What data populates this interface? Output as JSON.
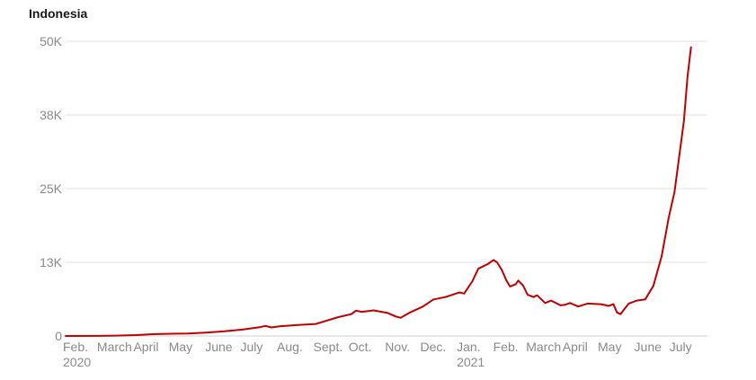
{
  "chart_data": {
    "type": "line",
    "title": "Indonesia",
    "xlabel": "",
    "ylabel": "",
    "colors": {
      "line": "#c00000",
      "grid": "#e3e3e3",
      "baseline": "#cfcfcf",
      "tick_text": "#8a8a8a"
    },
    "grid": true,
    "ylim": [
      0,
      50000
    ],
    "yticks": [
      {
        "value": 0,
        "label": "0"
      },
      {
        "value": 12500,
        "label": "13K"
      },
      {
        "value": 25000,
        "label": "25K"
      },
      {
        "value": 37500,
        "label": "38K"
      },
      {
        "value": 50000,
        "label": "50K"
      }
    ],
    "xlim": [
      "2020-02-01",
      "2021-07-31"
    ],
    "xticks": [
      {
        "date": "2020-02-01",
        "label": "Feb.",
        "sublabel": "2020"
      },
      {
        "date": "2020-03-01",
        "label": "March"
      },
      {
        "date": "2020-04-01",
        "label": "April"
      },
      {
        "date": "2020-05-01",
        "label": "May"
      },
      {
        "date": "2020-06-01",
        "label": "June"
      },
      {
        "date": "2020-07-01",
        "label": "July"
      },
      {
        "date": "2020-08-01",
        "label": "Aug."
      },
      {
        "date": "2020-09-01",
        "label": "Sept."
      },
      {
        "date": "2020-10-01",
        "label": "Oct."
      },
      {
        "date": "2020-11-01",
        "label": "Nov."
      },
      {
        "date": "2020-12-01",
        "label": "Dec."
      },
      {
        "date": "2021-01-01",
        "label": "Jan.",
        "sublabel": "2021"
      },
      {
        "date": "2021-02-01",
        "label": "Feb."
      },
      {
        "date": "2021-03-01",
        "label": "March"
      },
      {
        "date": "2021-04-01",
        "label": "April"
      },
      {
        "date": "2021-05-01",
        "label": "May"
      },
      {
        "date": "2021-06-01",
        "label": "June"
      },
      {
        "date": "2021-07-01",
        "label": "July"
      }
    ],
    "series": [
      {
        "points": [
          [
            "2020-02-01",
            0
          ],
          [
            "2020-03-01",
            20
          ],
          [
            "2020-03-15",
            60
          ],
          [
            "2020-04-01",
            150
          ],
          [
            "2020-04-15",
            300
          ],
          [
            "2020-05-01",
            380
          ],
          [
            "2020-05-15",
            420
          ],
          [
            "2020-06-01",
            600
          ],
          [
            "2020-06-15",
            800
          ],
          [
            "2020-07-01",
            1100
          ],
          [
            "2020-07-15",
            1500
          ],
          [
            "2020-07-20",
            1700
          ],
          [
            "2020-07-25",
            1450
          ],
          [
            "2020-08-01",
            1650
          ],
          [
            "2020-08-15",
            1850
          ],
          [
            "2020-09-01",
            2050
          ],
          [
            "2020-09-10",
            2600
          ],
          [
            "2020-09-20",
            3200
          ],
          [
            "2020-10-01",
            3700
          ],
          [
            "2020-10-05",
            4300
          ],
          [
            "2020-10-10",
            4100
          ],
          [
            "2020-10-20",
            4350
          ],
          [
            "2020-11-01",
            3900
          ],
          [
            "2020-11-08",
            3300
          ],
          [
            "2020-11-12",
            3100
          ],
          [
            "2020-11-20",
            4000
          ],
          [
            "2020-12-01",
            5000
          ],
          [
            "2020-12-10",
            6200
          ],
          [
            "2020-12-20",
            6600
          ],
          [
            "2021-01-01",
            7400
          ],
          [
            "2021-01-05",
            7200
          ],
          [
            "2021-01-12",
            9300
          ],
          [
            "2021-01-17",
            11400
          ],
          [
            "2021-01-20",
            11700
          ],
          [
            "2021-01-25",
            12200
          ],
          [
            "2021-01-30",
            12900
          ],
          [
            "2021-02-02",
            12500
          ],
          [
            "2021-02-06",
            11200
          ],
          [
            "2021-02-10",
            9400
          ],
          [
            "2021-02-13",
            8400
          ],
          [
            "2021-02-18",
            8800
          ],
          [
            "2021-02-20",
            9400
          ],
          [
            "2021-02-24",
            8600
          ],
          [
            "2021-02-28",
            7000
          ],
          [
            "2021-03-05",
            6600
          ],
          [
            "2021-03-08",
            6900
          ],
          [
            "2021-03-15",
            5600
          ],
          [
            "2021-03-20",
            6000
          ],
          [
            "2021-03-28",
            5200
          ],
          [
            "2021-04-01",
            5300
          ],
          [
            "2021-04-05",
            5600
          ],
          [
            "2021-04-12",
            5000
          ],
          [
            "2021-04-20",
            5500
          ],
          [
            "2021-05-01",
            5400
          ],
          [
            "2021-05-08",
            5100
          ],
          [
            "2021-05-12",
            5400
          ],
          [
            "2021-05-15",
            4000
          ],
          [
            "2021-05-18",
            3700
          ],
          [
            "2021-05-25",
            5500
          ],
          [
            "2021-06-01",
            6000
          ],
          [
            "2021-06-08",
            6200
          ],
          [
            "2021-06-15",
            8500
          ],
          [
            "2021-06-22",
            13500
          ],
          [
            "2021-06-28",
            20000
          ],
          [
            "2021-07-03",
            24500
          ],
          [
            "2021-07-08",
            32000
          ],
          [
            "2021-07-11",
            36500
          ],
          [
            "2021-07-14",
            44000
          ],
          [
            "2021-07-17",
            49000
          ]
        ]
      }
    ]
  }
}
